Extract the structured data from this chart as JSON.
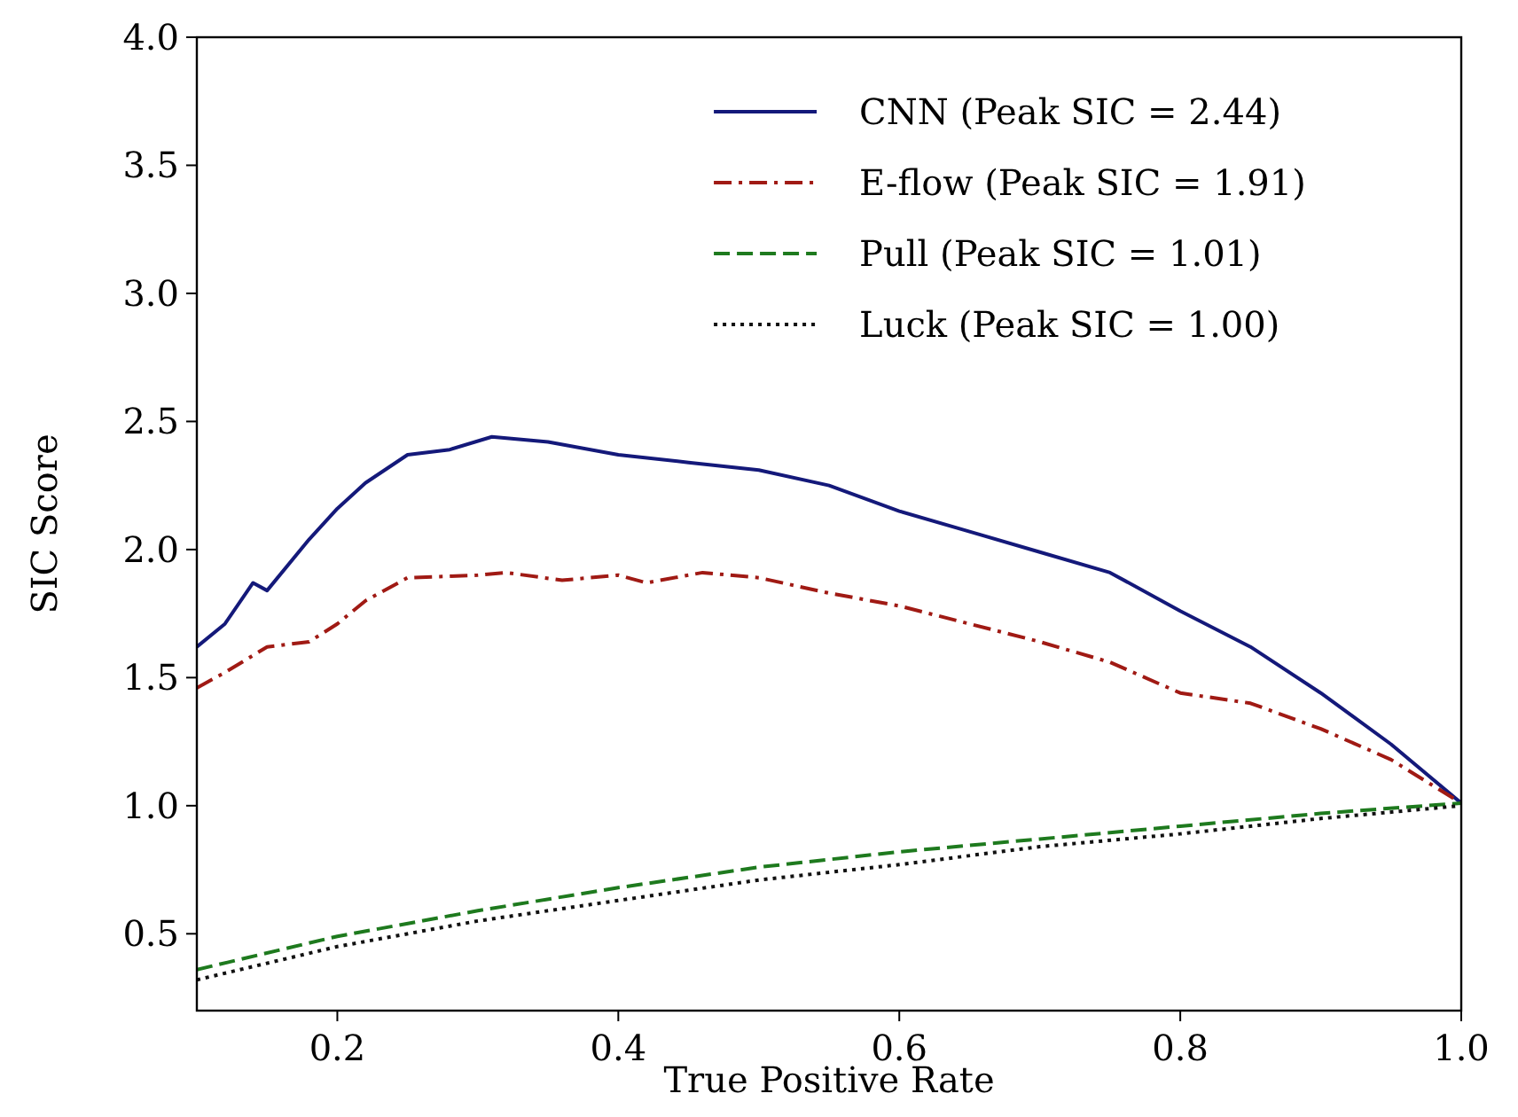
{
  "chart_data": {
    "type": "line",
    "xlabel": "True Positive Rate",
    "ylabel": "SIC Score",
    "xlim": [
      0.1,
      1.0
    ],
    "ylim": [
      0.2,
      4.0
    ],
    "xticks": [
      {
        "value": 0.2,
        "label": "0.2"
      },
      {
        "value": 0.4,
        "label": "0.4"
      },
      {
        "value": 0.6,
        "label": "0.6"
      },
      {
        "value": 0.8,
        "label": "0.8"
      },
      {
        "value": 1.0,
        "label": "1.0"
      }
    ],
    "yticks": [
      {
        "value": 0.5,
        "label": "0.5"
      },
      {
        "value": 1.0,
        "label": "1.0"
      },
      {
        "value": 1.5,
        "label": "1.5"
      },
      {
        "value": 2.0,
        "label": "2.0"
      },
      {
        "value": 2.5,
        "label": "2.5"
      },
      {
        "value": 3.0,
        "label": "3.0"
      },
      {
        "value": 3.5,
        "label": "3.5"
      },
      {
        "value": 4.0,
        "label": "4.0"
      }
    ],
    "grid": false,
    "legend": "top right",
    "marker": "none",
    "series": [
      {
        "name": "CNN (Peak SIC = 2.44)",
        "color": "#14197a",
        "line_style": "solid",
        "x": [
          0.1,
          0.12,
          0.14,
          0.15,
          0.18,
          0.2,
          0.22,
          0.25,
          0.28,
          0.31,
          0.35,
          0.4,
          0.45,
          0.5,
          0.55,
          0.6,
          0.65,
          0.7,
          0.75,
          0.8,
          0.85,
          0.9,
          0.95,
          1.0
        ],
        "values": [
          1.62,
          1.71,
          1.87,
          1.84,
          2.04,
          2.16,
          2.26,
          2.37,
          2.39,
          2.44,
          2.42,
          2.37,
          2.34,
          2.31,
          2.25,
          2.15,
          2.07,
          1.99,
          1.91,
          1.76,
          1.62,
          1.44,
          1.24,
          1.01
        ]
      },
      {
        "name": "E-flow (Peak SIC = 1.91)",
        "color": "#a01a14",
        "line_style": "dashdot",
        "x": [
          0.1,
          0.12,
          0.15,
          0.18,
          0.2,
          0.22,
          0.25,
          0.3,
          0.32,
          0.36,
          0.4,
          0.42,
          0.46,
          0.5,
          0.55,
          0.6,
          0.65,
          0.7,
          0.75,
          0.8,
          0.85,
          0.9,
          0.95,
          1.0
        ],
        "values": [
          1.46,
          1.52,
          1.62,
          1.64,
          1.71,
          1.8,
          1.89,
          1.9,
          1.91,
          1.88,
          1.9,
          1.87,
          1.91,
          1.89,
          1.83,
          1.78,
          1.71,
          1.64,
          1.56,
          1.44,
          1.4,
          1.3,
          1.18,
          1.01
        ]
      },
      {
        "name": "Pull (Peak SIC = 1.01)",
        "color": "#1e7a1e",
        "line_style": "dashed",
        "x": [
          0.1,
          0.2,
          0.3,
          0.4,
          0.5,
          0.6,
          0.7,
          0.8,
          0.9,
          1.0
        ],
        "values": [
          0.36,
          0.49,
          0.59,
          0.68,
          0.76,
          0.82,
          0.87,
          0.92,
          0.97,
          1.01
        ]
      },
      {
        "name": "Luck (Peak SIC = 1.00)",
        "color": "#111111",
        "line_style": "dotted",
        "x": [
          0.1,
          0.2,
          0.3,
          0.4,
          0.5,
          0.6,
          0.7,
          0.8,
          0.9,
          1.0
        ],
        "values": [
          0.32,
          0.45,
          0.55,
          0.63,
          0.71,
          0.77,
          0.84,
          0.89,
          0.95,
          1.0
        ]
      }
    ]
  }
}
